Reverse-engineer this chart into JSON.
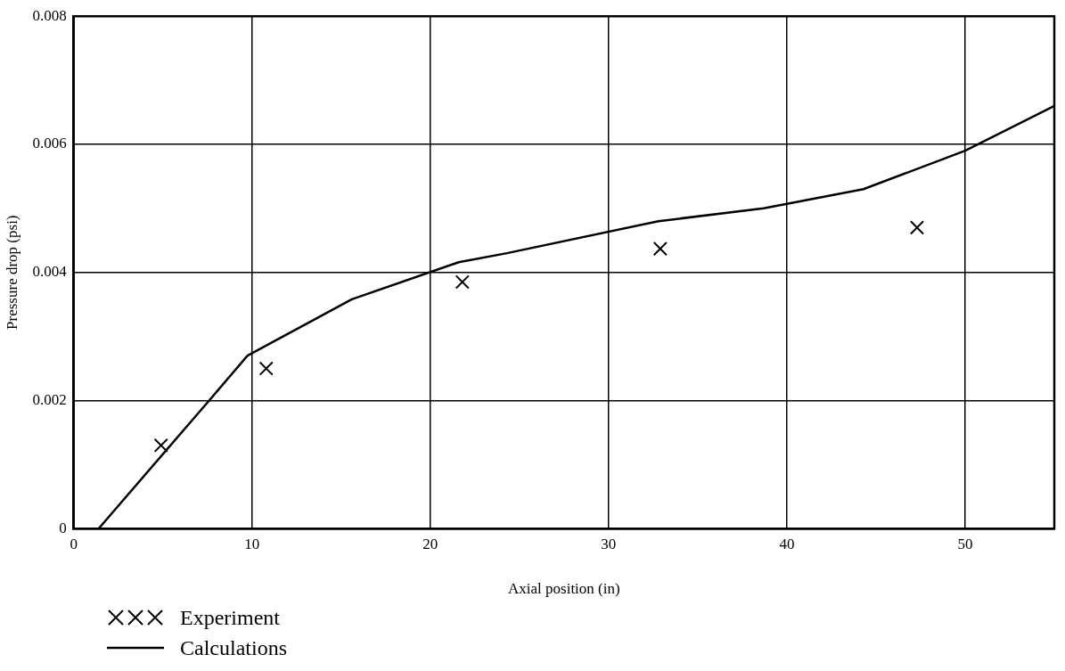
{
  "chart_data": {
    "type": "line",
    "xlabel": "Axial position (in)",
    "ylabel": "Pressure drop (psi)",
    "xlim": [
      0,
      55
    ],
    "ylim": [
      0,
      0.008
    ],
    "xticks": [
      0,
      10,
      20,
      30,
      40,
      50
    ],
    "yticks": [
      0,
      0.002,
      0.004,
      0.006,
      0.008
    ],
    "grid": true,
    "legend": "bottom left",
    "series": [
      {
        "name": "Experiment",
        "type": "scatter",
        "marker": "cross",
        "color": "#000000",
        "x": [
          4.9,
          10.8,
          21.8,
          32.9,
          47.3
        ],
        "values": [
          0.0013,
          0.0025,
          0.00385,
          0.00437,
          0.0047
        ]
      },
      {
        "name": "Calculations",
        "type": "line",
        "marker": "none",
        "line_style": "solid",
        "color": "#000000",
        "x": [
          1.4,
          7.6,
          9.75,
          15.6,
          21.6,
          24.3,
          32.8,
          38.7,
          44.3,
          50,
          55
        ],
        "values": [
          0,
          0.002,
          0.0027,
          0.00358,
          0.00416,
          0.0043,
          0.0048,
          0.005,
          0.0053,
          0.0059,
          0.0066
        ]
      }
    ]
  }
}
